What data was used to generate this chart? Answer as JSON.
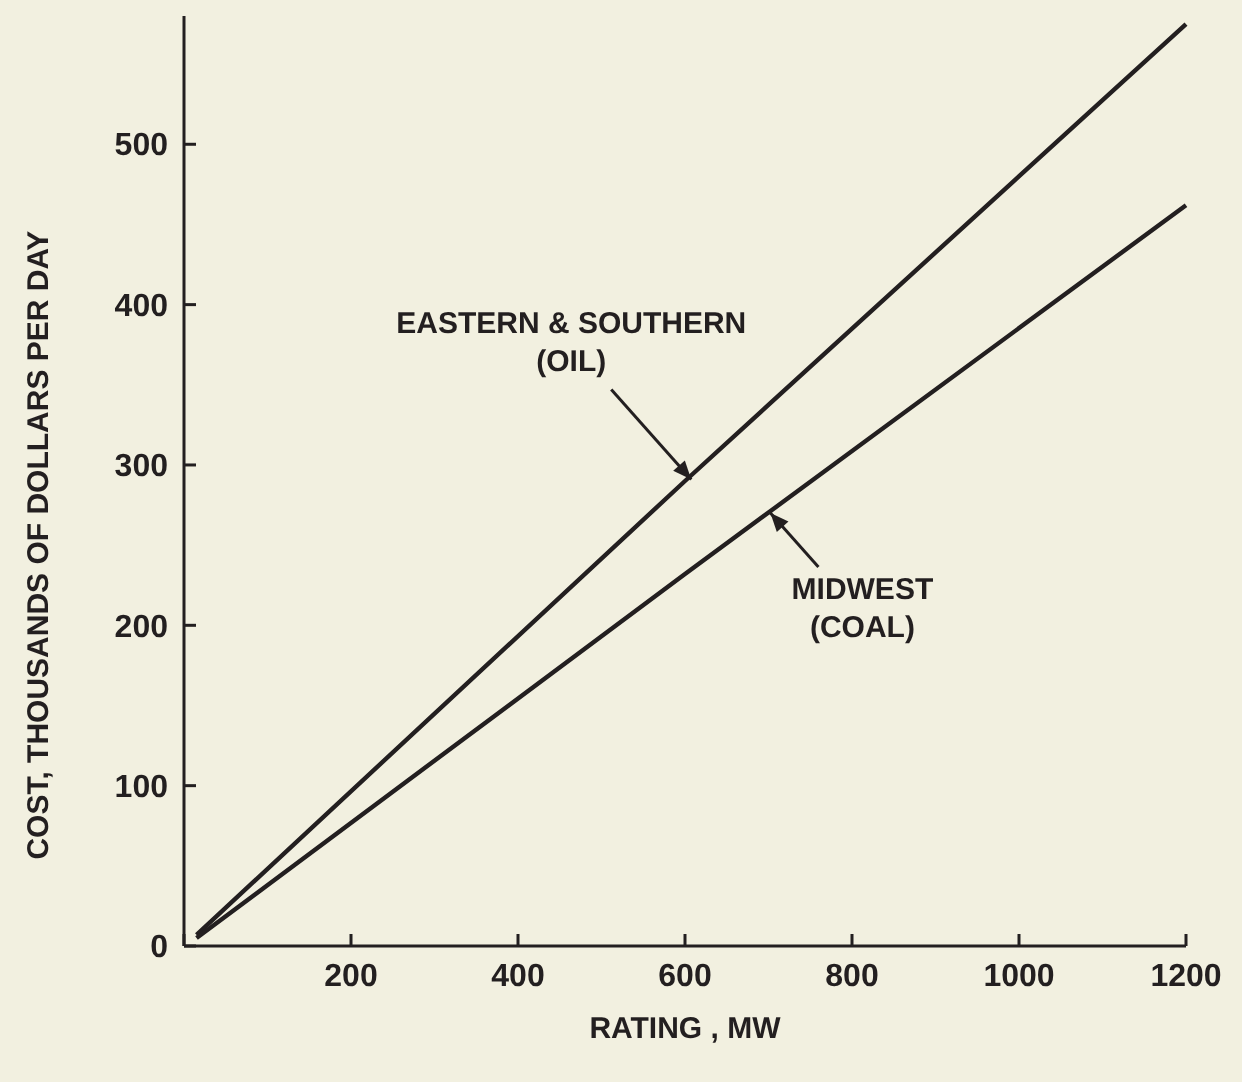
{
  "chart_data": {
    "type": "line",
    "xlabel": "RATING , MW",
    "ylabel": "COST, THOUSANDS OF DOLLARS PER DAY",
    "xlim": [
      0,
      1200
    ],
    "ylim": [
      0,
      580
    ],
    "xticks": [
      {
        "value": 0,
        "label": null
      },
      200,
      400,
      600,
      800,
      1000,
      1200
    ],
    "yticks": [
      0,
      100,
      200,
      300,
      400,
      500
    ],
    "grid": false,
    "series": [
      {
        "name": "EASTERN & SOUTHERN (OIL)",
        "color": "#231f20",
        "x": [
          15,
          600,
          1200
        ],
        "values": [
          7,
          290,
          575
        ]
      },
      {
        "name": "MIDWEST (COAL)",
        "color": "#231f20",
        "x": [
          15,
          600,
          1200
        ],
        "values": [
          5,
          232,
          462
        ]
      }
    ]
  }
}
